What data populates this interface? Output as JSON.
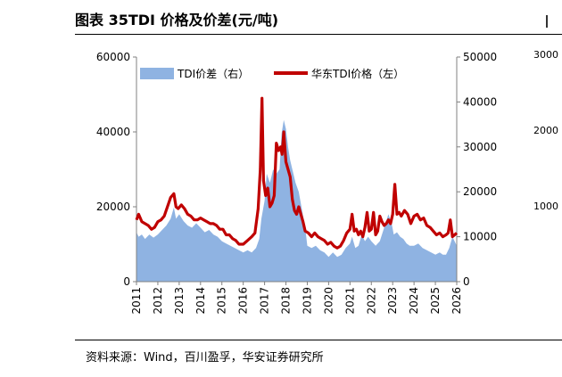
{
  "header": {
    "title": "图表 35TDI 价格及价差(元/吨)"
  },
  "footer": {
    "source": "资料来源：Wind，百川盈孚，华安证券研究所"
  },
  "adjacent_figure": {
    "tick_labels": [
      "3000",
      "2000",
      "1000"
    ]
  },
  "colors": {
    "spread_fill": "#8FB3E2",
    "price_line": "#C00000",
    "axis": "#808080"
  },
  "chart_data": {
    "type": "area",
    "title": "",
    "x_tick_labels": [
      "2011",
      "2012",
      "2013",
      "2014",
      "2015",
      "2016",
      "2017",
      "2018",
      "2019",
      "2020",
      "2021",
      "2022",
      "2023",
      "2024",
      "2025",
      "2026"
    ],
    "xlim": [
      2011.0,
      2026.0
    ],
    "left_axis": {
      "ylim": [
        0,
        60000
      ],
      "ticks": [
        0,
        20000,
        40000,
        60000
      ],
      "tick_labels": [
        "0",
        "20000",
        "40000",
        "60000"
      ]
    },
    "right_axis": {
      "ylim": [
        0,
        50000
      ],
      "ticks": [
        0,
        10000,
        20000,
        30000,
        40000,
        50000
      ],
      "tick_labels": [
        "0",
        "10000",
        "20000",
        "30000",
        "40000",
        "50000"
      ]
    },
    "legend_position": "top",
    "series": [
      {
        "name": "TDI价差（右）",
        "kind": "area",
        "axis": "right",
        "color": "#8FB3E2",
        "x": [
          2011.0,
          2011.1,
          2011.25,
          2011.4,
          2011.6,
          2011.8,
          2012.0,
          2012.2,
          2012.4,
          2012.6,
          2012.75,
          2012.85,
          2013.0,
          2013.2,
          2013.4,
          2013.6,
          2013.8,
          2014.0,
          2014.2,
          2014.4,
          2014.6,
          2014.8,
          2015.0,
          2015.2,
          2015.4,
          2015.6,
          2015.8,
          2016.0,
          2016.2,
          2016.4,
          2016.6,
          2016.75,
          2016.85,
          2017.0,
          2017.1,
          2017.25,
          2017.4,
          2017.55,
          2017.7,
          2017.8,
          2017.9,
          2018.0,
          2018.1,
          2018.2,
          2018.3,
          2018.45,
          2018.6,
          2018.75,
          2018.9,
          2019.0,
          2019.2,
          2019.4,
          2019.6,
          2019.8,
          2020.0,
          2020.2,
          2020.4,
          2020.6,
          2020.8,
          2021.0,
          2021.1,
          2021.25,
          2021.4,
          2021.55,
          2021.7,
          2021.85,
          2022.0,
          2022.2,
          2022.4,
          2022.6,
          2022.8,
          2022.95,
          2023.05,
          2023.2,
          2023.35,
          2023.5,
          2023.65,
          2023.8,
          2024.0,
          2024.2,
          2024.4,
          2024.6,
          2024.8,
          2025.0,
          2025.2,
          2025.35,
          2025.5,
          2025.65,
          2025.8,
          2026.0
        ],
        "values": [
          11000,
          10000,
          10500,
          9500,
          10500,
          9800,
          10500,
          11500,
          12500,
          14000,
          16500,
          14000,
          15000,
          13500,
          12500,
          12000,
          13000,
          12000,
          11000,
          11500,
          10500,
          10000,
          9000,
          8500,
          8000,
          7500,
          7000,
          6500,
          7000,
          6500,
          7500,
          9500,
          14000,
          18000,
          24000,
          22000,
          25000,
          24000,
          25000,
          33000,
          36000,
          34000,
          30000,
          27000,
          25000,
          22000,
          20000,
          16000,
          12000,
          8000,
          7500,
          8000,
          7000,
          6500,
          5500,
          6500,
          5500,
          6000,
          7500,
          8500,
          10000,
          7500,
          8000,
          10500,
          9000,
          10000,
          9000,
          8000,
          9000,
          12000,
          15000,
          13000,
          10500,
          11000,
          10000,
          9500,
          8500,
          8000,
          8000,
          8500,
          7500,
          7000,
          6500,
          6000,
          6500,
          6000,
          6000,
          7500,
          10000,
          8000
        ]
      },
      {
        "name": "华东TDI价格（左）",
        "kind": "line",
        "axis": "left",
        "color": "#C00000",
        "x": [
          2011.0,
          2011.1,
          2011.25,
          2011.4,
          2011.55,
          2011.7,
          2011.85,
          2012.0,
          2012.15,
          2012.3,
          2012.45,
          2012.6,
          2012.75,
          2012.85,
          2012.95,
          2013.1,
          2013.25,
          2013.4,
          2013.55,
          2013.7,
          2013.85,
          2014.0,
          2014.15,
          2014.3,
          2014.45,
          2014.6,
          2014.75,
          2014.9,
          2015.05,
          2015.2,
          2015.35,
          2015.5,
          2015.65,
          2015.8,
          2016.0,
          2016.2,
          2016.4,
          2016.55,
          2016.7,
          2016.8,
          2016.88,
          2016.95,
          2017.05,
          2017.15,
          2017.25,
          2017.35,
          2017.45,
          2017.55,
          2017.65,
          2017.75,
          2017.82,
          2017.9,
          2018.0,
          2018.1,
          2018.2,
          2018.3,
          2018.4,
          2018.5,
          2018.6,
          2018.7,
          2018.8,
          2018.9,
          2019.05,
          2019.2,
          2019.35,
          2019.5,
          2019.65,
          2019.8,
          2019.95,
          2020.1,
          2020.25,
          2020.4,
          2020.55,
          2020.7,
          2020.85,
          2021.0,
          2021.1,
          2021.2,
          2021.3,
          2021.4,
          2021.5,
          2021.6,
          2021.7,
          2021.8,
          2021.9,
          2022.0,
          2022.1,
          2022.2,
          2022.3,
          2022.4,
          2022.5,
          2022.6,
          2022.7,
          2022.8,
          2022.9,
          2023.0,
          2023.1,
          2023.2,
          2023.3,
          2023.4,
          2023.55,
          2023.7,
          2023.85,
          2024.0,
          2024.15,
          2024.3,
          2024.45,
          2024.6,
          2024.75,
          2024.9,
          2025.05,
          2025.2,
          2025.35,
          2025.5,
          2025.6,
          2025.7,
          2025.8,
          2025.9,
          2026.0
        ],
        "values": [
          16500,
          18000,
          16000,
          15500,
          15000,
          14000,
          14500,
          16000,
          16500,
          17500,
          20000,
          22500,
          23500,
          20000,
          19500,
          20500,
          19500,
          18000,
          17500,
          16500,
          16500,
          17000,
          16500,
          16000,
          15500,
          15500,
          15000,
          14000,
          14000,
          12500,
          12500,
          11500,
          11000,
          10000,
          10000,
          11000,
          12000,
          13000,
          19500,
          30000,
          49000,
          27000,
          23000,
          25000,
          20000,
          21000,
          23000,
          37000,
          35000,
          36000,
          34000,
          40000,
          32000,
          30000,
          28000,
          22000,
          19000,
          18000,
          20000,
          18000,
          16000,
          13500,
          13000,
          12000,
          13000,
          12000,
          11500,
          11000,
          10000,
          10500,
          9500,
          9000,
          9500,
          11000,
          13000,
          14000,
          18000,
          13500,
          14000,
          12500,
          13500,
          12000,
          14500,
          18500,
          13500,
          14000,
          18500,
          12500,
          13500,
          17500,
          16000,
          15000,
          15500,
          16500,
          15500,
          18000,
          26000,
          18000,
          18500,
          17500,
          19000,
          18000,
          15500,
          17500,
          18000,
          16500,
          17000,
          15000,
          14500,
          13500,
          12500,
          13000,
          12000,
          12500,
          13000,
          16500,
          12000,
          12500,
          13000
        ]
      }
    ]
  }
}
